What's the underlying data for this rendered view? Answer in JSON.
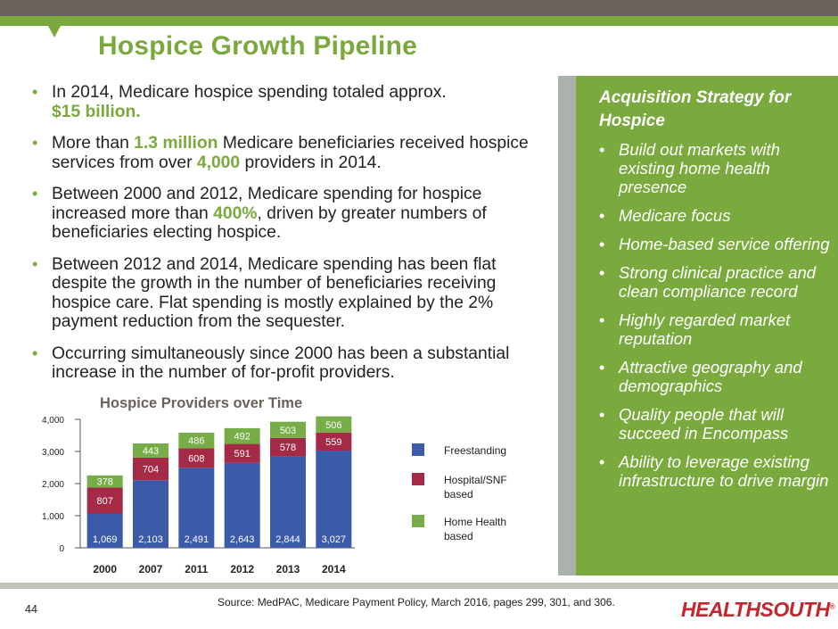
{
  "header": {
    "title": "Hospice Growth Pipeline"
  },
  "bullets": [
    {
      "parts": [
        {
          "t": "In 2014, Medicare hospice spending totaled approx. "
        },
        {
          "t": "$15 billion.",
          "hl": true,
          "br_before": true
        }
      ]
    },
    {
      "parts": [
        {
          "t": "More than "
        },
        {
          "t": "1.3 million",
          "hl": true
        },
        {
          "t": " Medicare beneficiaries received hospice services from over "
        },
        {
          "t": "4,000",
          "hl": true
        },
        {
          "t": " providers in 2014."
        }
      ]
    },
    {
      "parts": [
        {
          "t": "Between 2000 and 2012, Medicare spending for hospice increased more than "
        },
        {
          "t": "400%",
          "hl": true
        },
        {
          "t": ", driven by greater numbers of beneficiaries electing hospice."
        }
      ]
    },
    {
      "parts": [
        {
          "t": "Between 2012 and 2014, Medicare spending has been flat despite the growth in the number of beneficiaries receiving hospice care. Flat spending is mostly explained by the 2% payment reduction from the sequester."
        }
      ]
    },
    {
      "parts": [
        {
          "t": "Occurring simultaneously since 2000 has been a substantial increase in the number of for-profit providers."
        }
      ]
    }
  ],
  "sidebar": {
    "title": "Acquisition Strategy for Hospice",
    "items": [
      "Build out markets with existing home health presence",
      "Medicare focus",
      "Home-based service offering",
      "Strong clinical practice and clean compliance record",
      "Highly regarded market reputation",
      "Attractive geography and demographics",
      "Quality people that will succeed in Encompass",
      "Ability to leverage existing infrastructure to drive margin"
    ]
  },
  "chart_data": {
    "type": "bar",
    "stacked": true,
    "title": "Hospice Providers over Time",
    "categories": [
      "2000",
      "2007",
      "2011",
      "2012",
      "2013",
      "2014"
    ],
    "series": [
      {
        "name": "Freestanding",
        "color": "#3b5aa8",
        "values": [
          1069,
          2103,
          2491,
          2643,
          2844,
          3027
        ],
        "labels": [
          "1,069",
          "2,103",
          "2,491",
          "2,643",
          "2,844",
          "3,027"
        ]
      },
      {
        "name": "Hospital/SNF based",
        "color": "#a52a46",
        "values": [
          807,
          704,
          608,
          591,
          578,
          559
        ],
        "labels": [
          "807",
          "704",
          "608",
          "591",
          "578",
          "559"
        ]
      },
      {
        "name": "Home Health based",
        "color": "#77ad46",
        "values": [
          378,
          443,
          486,
          492,
          503,
          506
        ],
        "labels": [
          "378",
          "443",
          "486",
          "492",
          "503",
          "506"
        ]
      }
    ],
    "yticks": [
      "0",
      "1,000",
      "2,000",
      "3,000",
      "4,000"
    ],
    "ylim": [
      0,
      4000
    ],
    "xlabel": "",
    "ylabel": ""
  },
  "footer": {
    "source": "Source: MedPAC, Medicare Payment Policy, March 2016, pages 299, 301, and 306.",
    "page_number": "44",
    "logo": "HEALTHSOUTH",
    "logo_mark": "®"
  }
}
